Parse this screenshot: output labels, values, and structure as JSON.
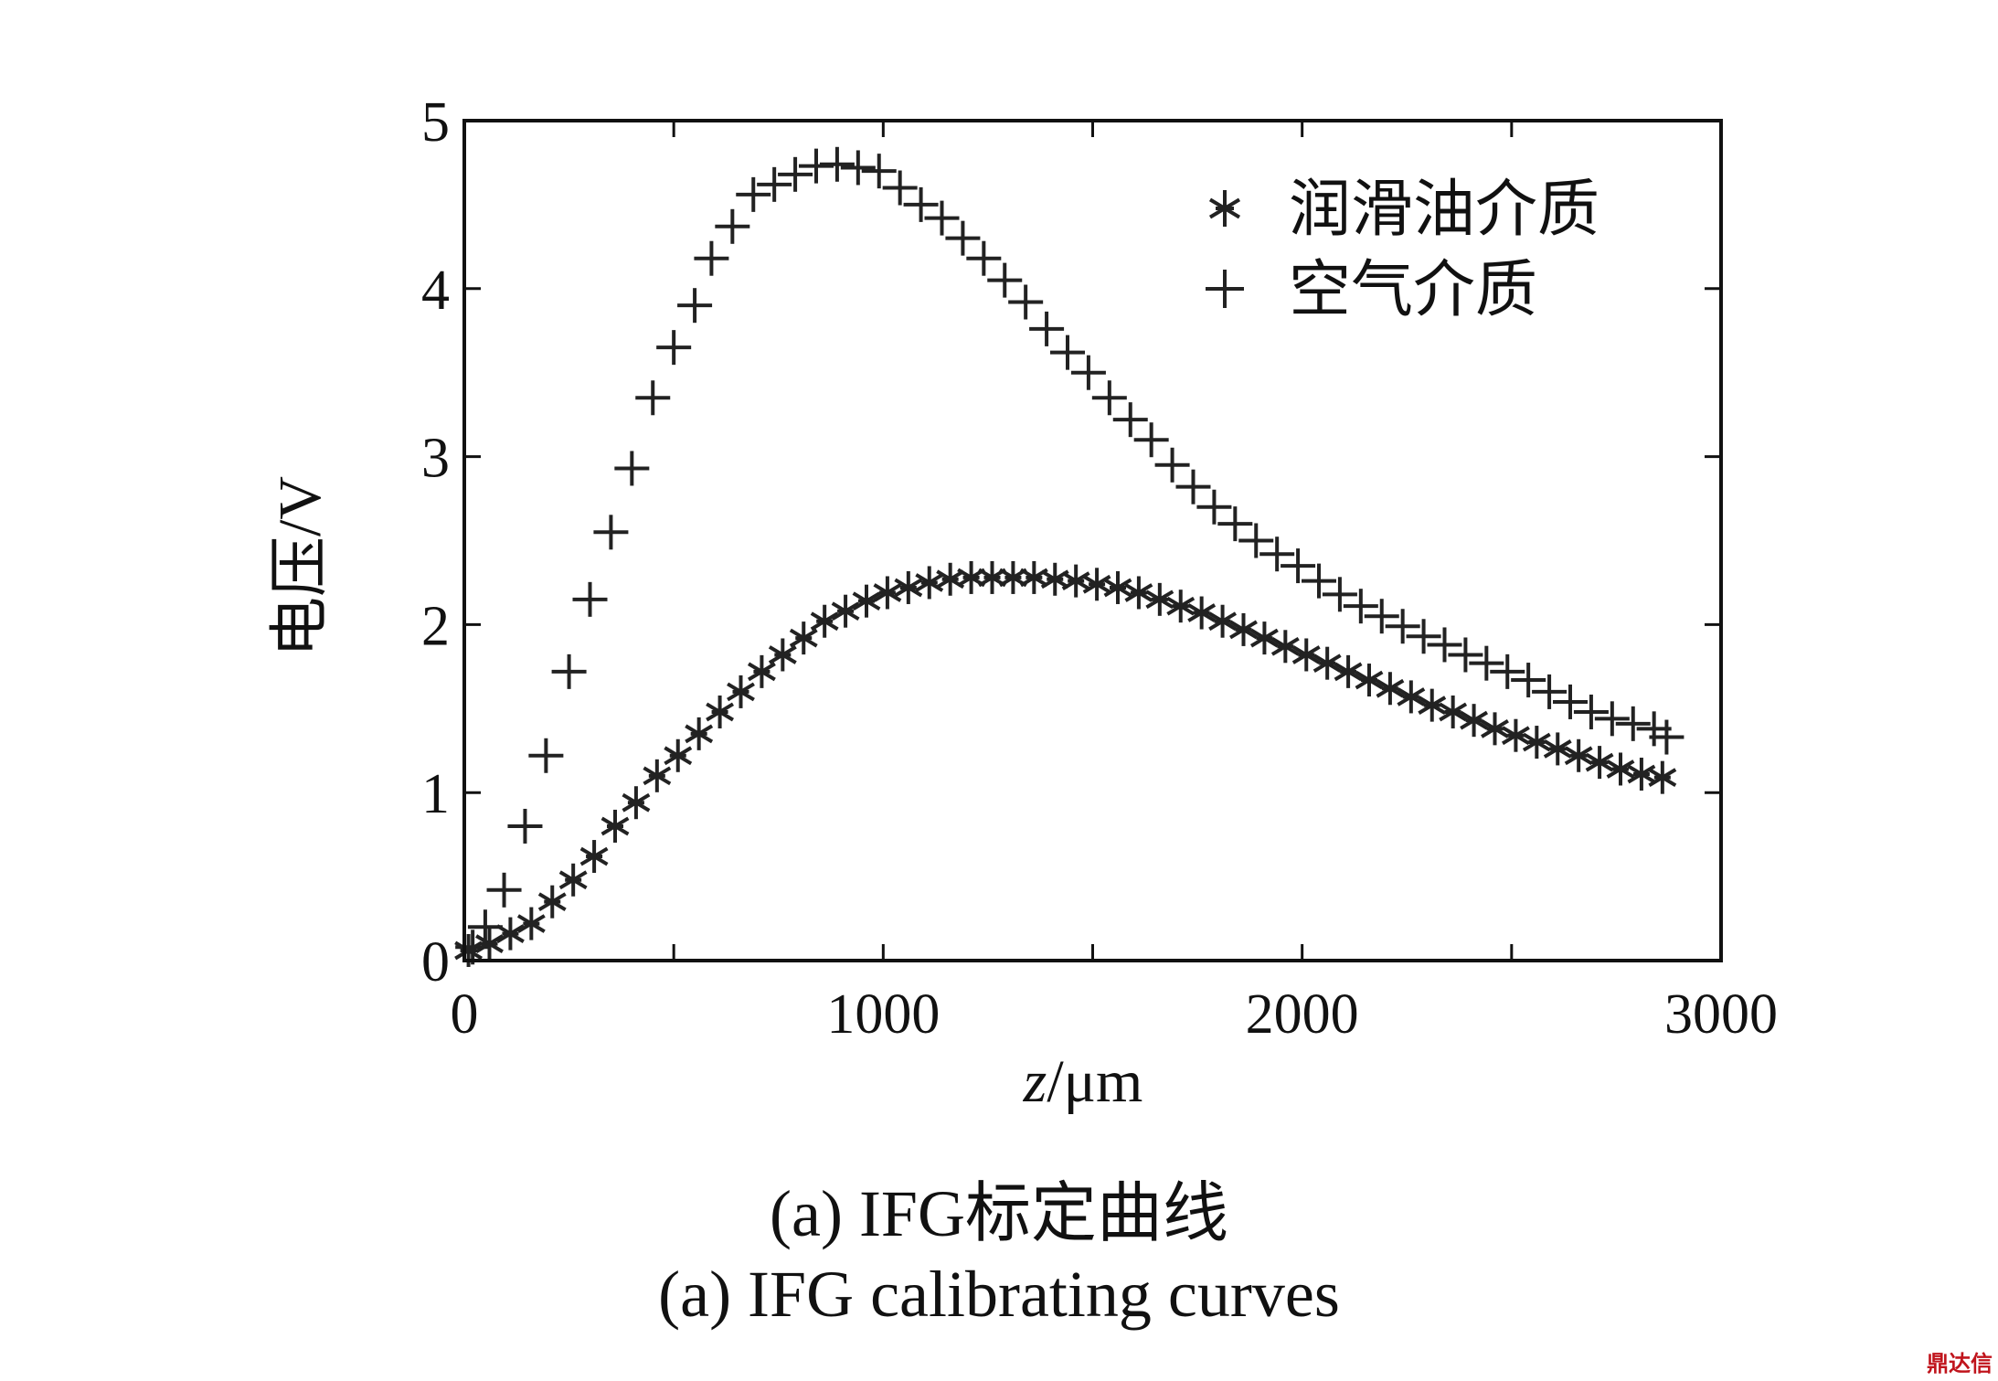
{
  "chart_data": {
    "type": "scatter",
    "xlabel_var": "z",
    "xlabel_unit": "/μm",
    "ylabel": "电压/V",
    "xlim": [
      0,
      3000
    ],
    "ylim": [
      0,
      5
    ],
    "xticks": [
      "0",
      "1000",
      "2000",
      "3000"
    ],
    "yticks": [
      "0",
      "1",
      "2",
      "3",
      "4",
      "5"
    ],
    "legend_position": "top-right",
    "grid": false,
    "series": [
      {
        "name": "润滑油介质",
        "marker": "asterisk",
        "points": [
          [
            10,
            0.06
          ],
          [
            60,
            0.1
          ],
          [
            110,
            0.16
          ],
          [
            160,
            0.22
          ],
          [
            210,
            0.35
          ],
          [
            260,
            0.48
          ],
          [
            310,
            0.62
          ],
          [
            360,
            0.8
          ],
          [
            410,
            0.94
          ],
          [
            460,
            1.1
          ],
          [
            510,
            1.22
          ],
          [
            560,
            1.35
          ],
          [
            610,
            1.48
          ],
          [
            660,
            1.6
          ],
          [
            710,
            1.72
          ],
          [
            760,
            1.82
          ],
          [
            810,
            1.92
          ],
          [
            860,
            2.02
          ],
          [
            910,
            2.08
          ],
          [
            960,
            2.14
          ],
          [
            1010,
            2.19
          ],
          [
            1060,
            2.22
          ],
          [
            1110,
            2.25
          ],
          [
            1160,
            2.27
          ],
          [
            1210,
            2.28
          ],
          [
            1260,
            2.28
          ],
          [
            1310,
            2.28
          ],
          [
            1360,
            2.28
          ],
          [
            1410,
            2.27
          ],
          [
            1460,
            2.26
          ],
          [
            1510,
            2.24
          ],
          [
            1560,
            2.22
          ],
          [
            1610,
            2.19
          ],
          [
            1660,
            2.15
          ],
          [
            1710,
            2.11
          ],
          [
            1760,
            2.07
          ],
          [
            1810,
            2.02
          ],
          [
            1860,
            1.97
          ],
          [
            1910,
            1.92
          ],
          [
            1960,
            1.87
          ],
          [
            2010,
            1.82
          ],
          [
            2060,
            1.77
          ],
          [
            2110,
            1.72
          ],
          [
            2160,
            1.67
          ],
          [
            2210,
            1.62
          ],
          [
            2260,
            1.57
          ],
          [
            2310,
            1.52
          ],
          [
            2360,
            1.48
          ],
          [
            2410,
            1.43
          ],
          [
            2460,
            1.38
          ],
          [
            2510,
            1.34
          ],
          [
            2560,
            1.3
          ],
          [
            2610,
            1.26
          ],
          [
            2660,
            1.22
          ],
          [
            2710,
            1.18
          ],
          [
            2760,
            1.14
          ],
          [
            2810,
            1.11
          ],
          [
            2860,
            1.09
          ]
        ]
      },
      {
        "name": "空气介质",
        "marker": "plus",
        "points": [
          [
            20,
            0.08
          ],
          [
            50,
            0.2
          ],
          [
            95,
            0.42
          ],
          [
            145,
            0.8
          ],
          [
            195,
            1.22
          ],
          [
            250,
            1.72
          ],
          [
            300,
            2.15
          ],
          [
            350,
            2.55
          ],
          [
            400,
            2.93
          ],
          [
            450,
            3.35
          ],
          [
            500,
            3.65
          ],
          [
            550,
            3.9
          ],
          [
            590,
            4.18
          ],
          [
            640,
            4.37
          ],
          [
            690,
            4.56
          ],
          [
            740,
            4.62
          ],
          [
            790,
            4.68
          ],
          [
            840,
            4.73
          ],
          [
            890,
            4.74
          ],
          [
            940,
            4.72
          ],
          [
            990,
            4.7
          ],
          [
            1040,
            4.6
          ],
          [
            1090,
            4.5
          ],
          [
            1140,
            4.42
          ],
          [
            1190,
            4.3
          ],
          [
            1240,
            4.18
          ],
          [
            1290,
            4.05
          ],
          [
            1340,
            3.92
          ],
          [
            1390,
            3.76
          ],
          [
            1440,
            3.62
          ],
          [
            1490,
            3.5
          ],
          [
            1540,
            3.35
          ],
          [
            1590,
            3.22
          ],
          [
            1640,
            3.1
          ],
          [
            1690,
            2.95
          ],
          [
            1740,
            2.82
          ],
          [
            1790,
            2.7
          ],
          [
            1840,
            2.6
          ],
          [
            1890,
            2.5
          ],
          [
            1940,
            2.42
          ],
          [
            1990,
            2.35
          ],
          [
            2040,
            2.26
          ],
          [
            2090,
            2.18
          ],
          [
            2140,
            2.11
          ],
          [
            2190,
            2.05
          ],
          [
            2240,
            1.99
          ],
          [
            2290,
            1.93
          ],
          [
            2340,
            1.88
          ],
          [
            2390,
            1.82
          ],
          [
            2440,
            1.77
          ],
          [
            2490,
            1.72
          ],
          [
            2540,
            1.67
          ],
          [
            2590,
            1.6
          ],
          [
            2640,
            1.54
          ],
          [
            2690,
            1.48
          ],
          [
            2740,
            1.44
          ],
          [
            2790,
            1.41
          ],
          [
            2840,
            1.38
          ],
          [
            2870,
            1.33
          ]
        ]
      }
    ]
  },
  "captions": {
    "cn": "(a) IFG标定曲线",
    "en": "(a) IFG calibrating curves"
  },
  "watermark": "鼎达信"
}
